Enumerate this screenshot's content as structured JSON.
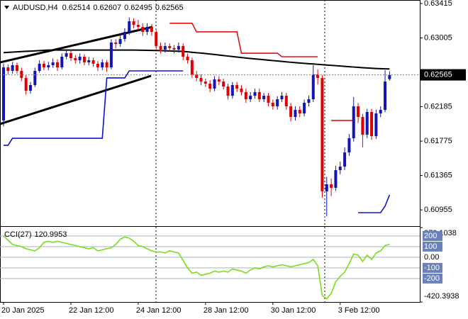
{
  "chart_data": [
    {
      "type": "candlestick",
      "symbol": "AUDUSD,H4",
      "categories": [
        "20 Jan 2025",
        null,
        null,
        null,
        null,
        null,
        null,
        null,
        null,
        null,
        null,
        null,
        null,
        null,
        null,
        "22 Jan 12:00",
        null,
        null,
        null,
        null,
        null,
        null,
        null,
        null,
        null,
        null,
        null,
        null,
        null,
        null,
        "24 Jan 12:00",
        null,
        null,
        null,
        null,
        null,
        null,
        null,
        null,
        null,
        null,
        null,
        null,
        null,
        null,
        "28 Jan 12:00",
        null,
        null,
        null,
        null,
        null,
        null,
        null,
        null,
        null,
        null,
        null,
        null,
        null,
        null,
        "30 Jan 12:00",
        null,
        null,
        null,
        null,
        null,
        null,
        null,
        null,
        null,
        null,
        null,
        null,
        null,
        null,
        "3 Feb 12:00",
        null,
        null,
        null,
        null,
        null,
        null,
        null,
        null,
        null,
        null,
        null
      ],
      "open": [
        0.62021,
        0.62654,
        0.62612,
        0.6268,
        0.62612,
        0.62528,
        0.62376,
        0.62443,
        0.62612,
        0.62697,
        0.62654,
        0.6268,
        0.62714,
        0.62654,
        0.62781,
        0.62823,
        0.62764,
        0.62739,
        0.62781,
        0.62714,
        0.62739,
        0.62697,
        0.62654,
        0.62714,
        0.62654,
        0.6295,
        0.62933,
        0.62992,
        0.63077,
        0.63204,
        0.63161,
        0.63136,
        0.63077,
        0.63136,
        0.63077,
        0.62908,
        0.62866,
        0.62908,
        0.62883,
        0.62866,
        0.62908,
        0.62781,
        0.62739,
        0.6257,
        0.62528,
        0.62485,
        0.6246,
        0.62401,
        0.62511,
        0.62485,
        0.62426,
        0.62316,
        0.62443,
        0.62401,
        0.62359,
        0.62274,
        0.62316,
        0.62359,
        0.62274,
        0.62316,
        0.62232,
        0.6219,
        0.62274,
        0.62316,
        0.6219,
        0.62063,
        0.62147,
        0.62105,
        0.62232,
        0.62274,
        0.6257,
        0.62528,
        0.61176,
        0.6126,
        0.61218,
        0.61429,
        0.61471,
        0.6164,
        0.61809,
        0.6219,
        0.62063,
        0.61852,
        0.62122,
        0.61835,
        0.62105,
        0.62147,
        0.62514
      ],
      "high": [
        0.627,
        0.6269,
        0.6272,
        0.6271,
        0.6265,
        0.6256,
        0.6248,
        0.6265,
        0.6274,
        0.6273,
        0.6272,
        0.6276,
        0.6275,
        0.6282,
        0.6287,
        0.6285,
        0.628,
        0.6282,
        0.6281,
        0.6278,
        0.6277,
        0.6273,
        0.6275,
        0.6274,
        0.6299,
        0.6299,
        0.6304,
        0.6312,
        0.6325,
        0.6324,
        0.6322,
        0.6318,
        0.6318,
        0.6317,
        0.631,
        0.6295,
        0.6295,
        0.6294,
        0.6292,
        0.6295,
        0.6294,
        0.6282,
        0.6277,
        0.6261,
        0.6257,
        0.6252,
        0.625,
        0.6255,
        0.6255,
        0.6252,
        0.6246,
        0.6248,
        0.6248,
        0.6244,
        0.624,
        0.6236,
        0.624,
        0.624,
        0.6235,
        0.6235,
        0.6227,
        0.6231,
        0.6236,
        0.6235,
        0.6223,
        0.6219,
        0.6219,
        0.6227,
        0.6232,
        0.6268,
        0.6263,
        0.6256,
        0.6135,
        0.6133,
        0.6148,
        0.6153,
        0.617,
        0.6186,
        0.623,
        0.6223,
        0.621,
        0.6216,
        0.6216,
        0.6215,
        0.6219,
        0.6262,
        0.62607
      ],
      "low": [
        0.6195,
        0.6257,
        0.6258,
        0.6258,
        0.6249,
        0.6233,
        0.6234,
        0.6242,
        0.6259,
        0.6262,
        0.6262,
        0.6265,
        0.6261,
        0.6263,
        0.6275,
        0.6273,
        0.627,
        0.627,
        0.6268,
        0.6268,
        0.6266,
        0.6261,
        0.6262,
        0.626,
        0.6263,
        0.6288,
        0.629,
        0.6296,
        0.6304,
        0.6312,
        0.6309,
        0.6303,
        0.6304,
        0.6303,
        0.6287,
        0.6282,
        0.6283,
        0.6284,
        0.6282,
        0.6283,
        0.6274,
        0.627,
        0.6253,
        0.6249,
        0.6244,
        0.6242,
        0.6236,
        0.6237,
        0.6244,
        0.6239,
        0.6227,
        0.6228,
        0.6236,
        0.6232,
        0.6223,
        0.6224,
        0.6228,
        0.6224,
        0.6224,
        0.6219,
        0.6215,
        0.6215,
        0.6224,
        0.6215,
        0.6201,
        0.6202,
        0.6206,
        0.6207,
        0.6219,
        0.6224,
        0.6245,
        0.611,
        0.6088,
        0.6112,
        0.6118,
        0.6138,
        0.6143,
        0.616,
        0.6177,
        0.6199,
        0.617,
        0.6181,
        0.6179,
        0.618,
        0.6206,
        0.6212,
        0.62495
      ],
      "close": [
        0.62654,
        0.62612,
        0.6268,
        0.62612,
        0.62528,
        0.62376,
        0.62443,
        0.62612,
        0.62697,
        0.62654,
        0.6268,
        0.62714,
        0.62654,
        0.62781,
        0.62823,
        0.62764,
        0.62739,
        0.62781,
        0.62714,
        0.62739,
        0.62697,
        0.62654,
        0.62714,
        0.62654,
        0.6295,
        0.62933,
        0.62992,
        0.63077,
        0.63204,
        0.63161,
        0.63136,
        0.63077,
        0.63136,
        0.63077,
        0.62908,
        0.62866,
        0.62908,
        0.62883,
        0.62866,
        0.62908,
        0.62781,
        0.62739,
        0.6257,
        0.62528,
        0.62485,
        0.6246,
        0.62401,
        0.62511,
        0.62485,
        0.62426,
        0.62316,
        0.62443,
        0.62401,
        0.62359,
        0.62274,
        0.62316,
        0.62359,
        0.62274,
        0.62316,
        0.62232,
        0.6219,
        0.62274,
        0.62316,
        0.6219,
        0.62063,
        0.62147,
        0.62105,
        0.62232,
        0.62274,
        0.6257,
        0.62528,
        0.61176,
        0.6126,
        0.61218,
        0.61429,
        0.61471,
        0.6164,
        0.61809,
        0.6219,
        0.62063,
        0.61852,
        0.62122,
        0.61835,
        0.62105,
        0.62147,
        0.62485,
        0.62565
      ],
      "up_color": "#1414b4",
      "down_color": "#e00000",
      "series": [
        {
          "color": "#000000",
          "values": [
            0.6283,
            0.62833,
            0.62836,
            0.62839,
            0.62842,
            0.62845,
            0.62848,
            0.62851,
            0.62854,
            0.62857,
            0.6286,
            0.6286,
            0.6286,
            0.6286,
            0.6286,
            0.6286,
            0.6286,
            0.6286,
            0.6286,
            0.6286,
            0.6286,
            0.6286,
            0.6286,
            0.6286,
            0.6286,
            0.6286,
            0.6286,
            0.6286,
            0.6286,
            0.6286,
            0.62859,
            0.62858,
            0.62857,
            0.62856,
            0.62855,
            0.62854,
            0.62852,
            0.6285,
            0.62848,
            0.62846,
            0.62844,
            0.62839,
            0.62834,
            0.62829,
            0.62824,
            0.62819,
            0.62813,
            0.62807,
            0.62801,
            0.62795,
            0.62789,
            0.62783,
            0.62777,
            0.62771,
            0.62765,
            0.6276,
            0.62755,
            0.6275,
            0.62745,
            0.6274,
            0.62735,
            0.6273,
            0.62725,
            0.6272,
            0.62715,
            0.6271,
            0.62706,
            0.62702,
            0.62698,
            0.62694,
            0.6269,
            0.62686,
            0.62682,
            0.62678,
            0.62674,
            0.6267,
            0.62666,
            0.62662,
            0.62658,
            0.62654,
            0.6265,
            0.62647,
            0.62644,
            0.62641,
            0.62638,
            0.62636,
            0.62635
          ]
        },
        {
          "color": "#e01010",
          "values": [
            null,
            null,
            null,
            null,
            null,
            null,
            null,
            null,
            null,
            null,
            null,
            null,
            null,
            null,
            null,
            null,
            null,
            null,
            null,
            null,
            null,
            null,
            null,
            null,
            null,
            null,
            null,
            null,
            null,
            null,
            null,
            null,
            null,
            null,
            null,
            null,
            null,
            0.6318,
            0.6318,
            0.6318,
            0.6318,
            0.6318,
            0.6318,
            0.63077,
            0.63077,
            0.63077,
            0.63077,
            0.63077,
            0.63077,
            0.63077,
            0.63077,
            0.63077,
            0.63077,
            0.62823,
            0.62823,
            0.62823,
            0.62823,
            0.62823,
            0.62823,
            0.62823,
            0.62823,
            0.62823,
            0.62781,
            0.62781,
            0.62781,
            0.62781,
            0.62781,
            0.62781,
            0.62781,
            0.62781,
            0.62781,
            null,
            null,
            0.62021,
            0.62021,
            0.62021,
            0.62021,
            0.62021,
            0.62021,
            null,
            null,
            null,
            null,
            null,
            null,
            null,
            null
          ]
        },
        {
          "color": "#1010d0",
          "values": [
            0.61725,
            0.61725,
            0.61809,
            0.61809,
            0.61809,
            0.61809,
            0.61809,
            0.61809,
            0.61809,
            0.61809,
            0.61809,
            0.61809,
            0.61809,
            0.61809,
            0.61809,
            0.61809,
            0.61809,
            0.61809,
            0.61809,
            0.61809,
            0.61809,
            0.61809,
            0.61809,
            0.62528,
            0.62528,
            0.62528,
            0.62528,
            0.62528,
            0.62612,
            0.62612,
            0.62612,
            0.62612,
            0.62612,
            0.62612,
            0.62612,
            0.62612,
            0.62612,
            0.62612,
            0.62612,
            0.62612,
            0.62612,
            null,
            null,
            null,
            null,
            null,
            null,
            null,
            null,
            null,
            null,
            null,
            null,
            null,
            null,
            null,
            null,
            null,
            null,
            null,
            null,
            null,
            null,
            null,
            null,
            null,
            null,
            null,
            null,
            null,
            null,
            null,
            null,
            null,
            null,
            null,
            null,
            null,
            null,
            0.60922,
            0.60922,
            0.60922,
            0.60922,
            0.60922,
            0.60922,
            0.61,
            0.61134
          ]
        }
      ],
      "ylim": [
        0.6077,
        0.63457
      ],
      "yticks": [
        0.63415,
        0.63005,
        0.62185,
        0.61775,
        0.61365,
        0.60955
      ]
    },
    {
      "type": "line",
      "title": "CCI(27)",
      "series": [
        {
          "color": "#7ddc1c",
          "values": [
            200,
            160,
            120,
            110,
            100,
            80,
            70,
            60,
            90,
            140,
            150,
            140,
            150,
            140,
            130,
            120,
            110,
            100,
            90,
            80,
            90,
            60,
            70,
            80,
            90,
            120,
            170,
            190,
            180,
            150,
            110,
            100,
            80,
            60,
            50,
            50,
            40,
            60,
            50,
            40,
            -30,
            -100,
            -150,
            -140,
            -170,
            -160,
            -150,
            -130,
            -140,
            -130,
            -140,
            -110,
            -120,
            -130,
            -150,
            -120,
            -100,
            -110,
            -90,
            -80,
            -90,
            -80,
            -70,
            -80,
            -90,
            -80,
            -70,
            -60,
            -50,
            -20,
            -80,
            -360,
            -390,
            -340,
            -230,
            -180,
            -140,
            -60,
            30,
            20,
            -40,
            20,
            -20,
            40,
            60,
            110,
            120.9953
          ]
        }
      ],
      "ylim": [
        -420.3938,
        279.1038
      ],
      "yticks": [
        279.1038,
        200,
        100,
        {
          "value": 0,
          "label": "0.00"
        },
        -100,
        -200,
        -420.3938
      ]
    }
  ]
}
